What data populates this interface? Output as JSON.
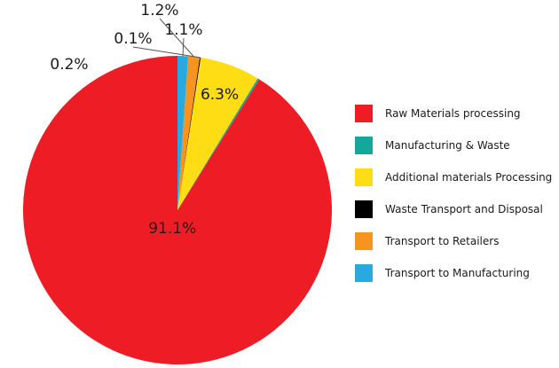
{
  "chart_data": {
    "type": "pie",
    "title": "",
    "legend_position": "right",
    "slices": [
      {
        "name": "Raw Materials processing",
        "value": 91.1,
        "label": "91.1%",
        "color": "#ee1d25"
      },
      {
        "name": "Manufacturing & Waste",
        "value": 0.2,
        "label": "0.2%",
        "color": "#14a89a"
      },
      {
        "name": "Additional materials Processing",
        "value": 6.3,
        "label": "6.3%",
        "color": "#ffdd15"
      },
      {
        "name": "Waste Transport and Disposal",
        "value": 0.1,
        "label": "0.1%",
        "color": "#000000"
      },
      {
        "name": "Transport to Retailers",
        "value": 1.2,
        "label": "1.2%",
        "color": "#f7941d"
      },
      {
        "name": "Transport to Manufacturing",
        "value": 1.1,
        "label": "1.1%",
        "color": "#27aae1"
      }
    ]
  }
}
